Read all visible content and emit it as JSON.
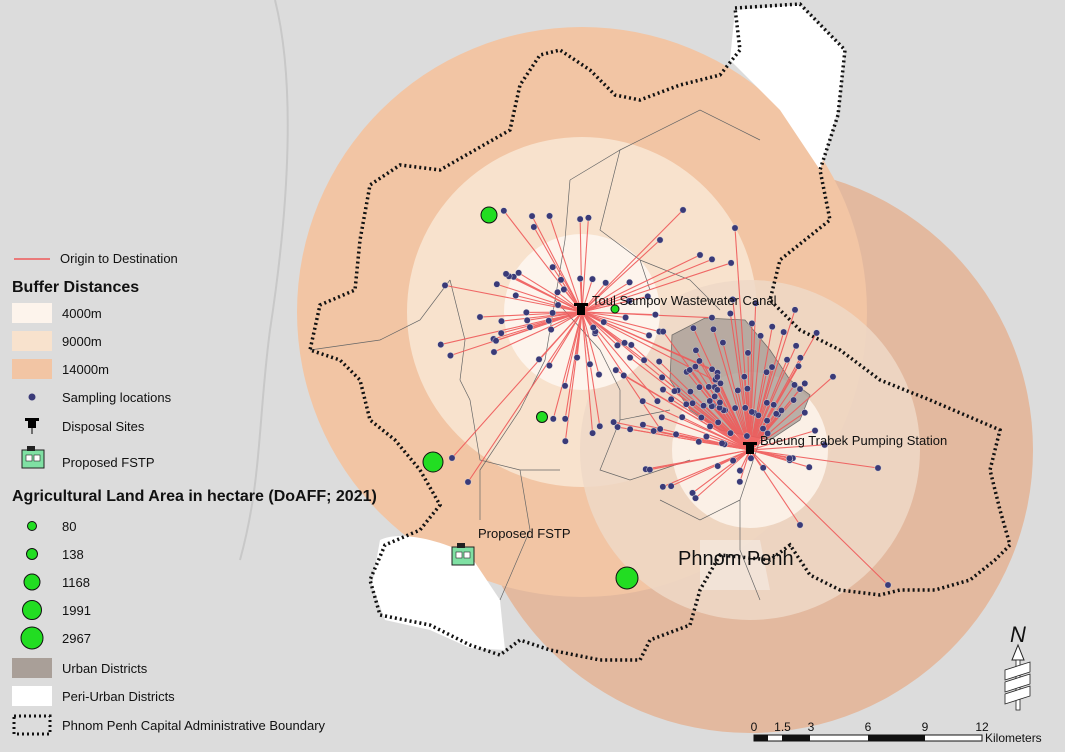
{
  "map": {
    "city_label": "Phnom Penh",
    "disposal_site_labels": [
      "Toul Sampov Wastewater Canal",
      "Boeung Trabek Pumping Station"
    ],
    "fstp_label": "Proposed FSTP"
  },
  "legend": {
    "origin_destination": "Origin to Destination",
    "buffer_title": "Buffer Distances",
    "buffers": [
      "4000m",
      "9000m",
      "14000m"
    ],
    "sampling": "Sampling locations",
    "disposal": "Disposal Sites",
    "fstp": "Proposed FSTP",
    "agri_title": "Agricultural Land Area in hectare (DoAFF; 2021)",
    "agri_values": [
      "80",
      "138",
      "1168",
      "1991",
      "2967"
    ],
    "urban": "Urban Districts",
    "peri_urban": "Peri-Urban Districts",
    "boundary": "Phnom Penh Capital Administrative Boundary"
  },
  "scale_bar": {
    "ticks": [
      "0",
      "1.5",
      "3",
      "6",
      "9",
      "12"
    ],
    "unit": "Kilometers"
  },
  "north_arrow": "N",
  "colors": {
    "background": "#dcdcdc",
    "buffer_14000": "#f3c8a8",
    "buffer_9000": "#f8e3d0",
    "buffer_4000": "#fdf5ee",
    "outer_band": "#e3b99f",
    "urban": "#a89d97",
    "lines": "#ef5a5a",
    "points": "#3a3a78",
    "agri": "#22dd22"
  }
}
